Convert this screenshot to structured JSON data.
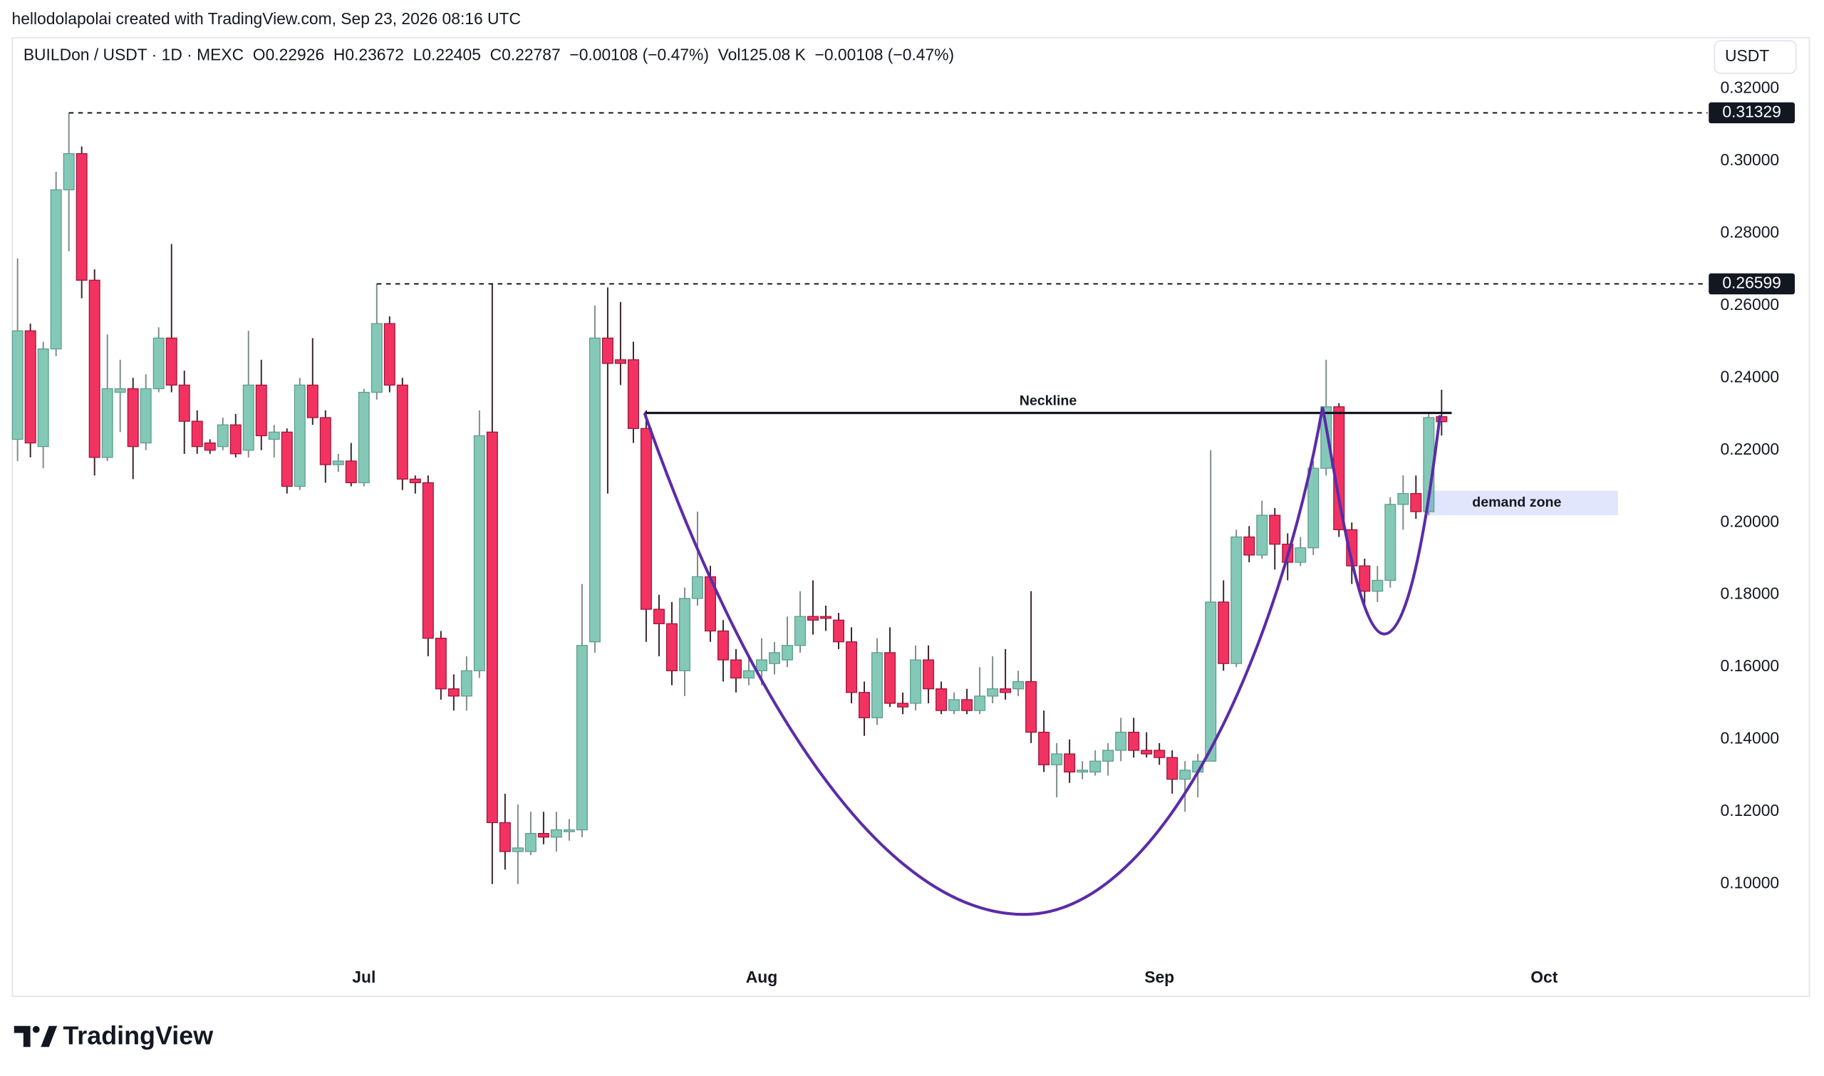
{
  "header": "hellodolapolai created with TradingView.com, Sep 23, 2026 08:16 UTC",
  "brand": "TradingView",
  "chart_data": {
    "type": "candlestick",
    "legend_text": "BUILDon / USDT · 1D · MEXC  O0.22926  H0.23672  L0.22405  C0.22787  −0.00108 (−0.47%)  Vol125.08 K  −0.00108 (−0.47%)",
    "currency": "USDT",
    "categories": [
      null,
      null,
      null,
      null,
      null,
      null,
      null,
      null,
      null,
      null,
      null,
      null,
      null,
      null,
      null,
      null,
      null,
      null,
      null,
      null,
      null,
      null,
      null,
      null,
      null,
      null,
      null,
      "Jul",
      null,
      null,
      null,
      null,
      null,
      null,
      null,
      null,
      null,
      null,
      null,
      null,
      null,
      null,
      null,
      null,
      null,
      null,
      null,
      null,
      null,
      null,
      null,
      null,
      null,
      null,
      null,
      null,
      null,
      null,
      "Aug",
      null,
      null,
      null,
      null,
      null,
      null,
      null,
      null,
      null,
      null,
      null,
      null,
      null,
      null,
      null,
      null,
      null,
      null,
      null,
      null,
      null,
      null,
      null,
      null,
      null,
      null,
      null,
      null,
      null,
      null,
      "Sep",
      null,
      null,
      null,
      null,
      null,
      null,
      null,
      null,
      null,
      null,
      null,
      null,
      null,
      null,
      null,
      null,
      null,
      null,
      null,
      null,
      null,
      null,
      null,
      null,
      null,
      null,
      null,
      null,
      null,
      "Oct",
      null,
      null,
      null,
      null,
      null,
      null,
      null,
      null,
      null,
      null,
      null,
      null
    ],
    "open": [
      0.223,
      0.253,
      0.221,
      0.248,
      0.292,
      0.302,
      0.267,
      0.218,
      0.236,
      0.237,
      0.222,
      0.237,
      0.251,
      0.238,
      0.228,
      0.222,
      0.221,
      0.227,
      0.22,
      0.238,
      0.223,
      0.225,
      0.21,
      0.238,
      0.229,
      0.216,
      0.217,
      0.211,
      0.236,
      0.255,
      0.238,
      0.212,
      0.211,
      0.168,
      0.154,
      0.152,
      0.159,
      0.225,
      0.117,
      0.109,
      0.109,
      0.114,
      0.113,
      0.1145,
      0.115,
      0.167,
      0.251,
      0.245,
      0.245,
      0.226,
      0.176,
      0.172,
      0.159,
      0.179,
      0.185,
      0.17,
      0.162,
      0.157,
      0.159,
      0.161,
      0.162,
      0.166,
      0.174,
      0.174,
      0.173,
      0.167,
      0.153,
      0.146,
      0.164,
      0.15,
      0.15,
      0.162,
      0.154,
      0.148,
      0.151,
      0.148,
      0.152,
      0.154,
      0.154,
      0.156,
      0.142,
      0.133,
      0.136,
      0.131,
      0.131,
      0.134,
      0.137,
      0.142,
      0.137,
      0.137,
      0.135,
      0.129,
      0.131,
      0.134,
      0.178,
      0.161,
      0.196,
      0.191,
      0.202,
      0.194,
      0.189,
      0.193,
      0.215,
      0.232,
      0.198,
      0.188,
      0.181,
      0.184,
      0.205,
      0.208,
      0.203,
      0.22926,
      null,
      null,
      null,
      null,
      null,
      null,
      null,
      null,
      null,
      null,
      null,
      null,
      null,
      null,
      null,
      null,
      null,
      null,
      null,
      null
    ],
    "high": [
      0.273,
      0.255,
      0.25,
      0.297,
      0.31329,
      0.304,
      0.27,
      0.252,
      0.245,
      0.24,
      0.241,
      0.254,
      0.277,
      0.242,
      0.231,
      0.223,
      0.229,
      0.23,
      0.253,
      0.245,
      0.227,
      0.226,
      0.24,
      0.251,
      0.231,
      0.219,
      0.222,
      0.237,
      0.26599,
      0.257,
      0.24,
      0.213,
      0.213,
      0.17,
      0.158,
      0.163,
      0.231,
      0.266,
      0.125,
      0.122,
      0.12,
      0.12,
      0.12,
      0.118,
      0.183,
      0.26,
      0.265,
      0.261,
      0.25,
      0.231,
      0.18,
      0.178,
      0.182,
      0.203,
      0.188,
      0.173,
      0.165,
      0.163,
      0.168,
      0.167,
      0.174,
      0.181,
      0.184,
      0.177,
      0.175,
      0.171,
      0.156,
      0.168,
      0.171,
      0.153,
      0.166,
      0.166,
      0.156,
      0.153,
      0.154,
      0.16,
      0.163,
      0.165,
      0.159,
      0.181,
      0.148,
      0.139,
      0.14,
      0.134,
      0.137,
      0.139,
      0.146,
      0.146,
      0.142,
      0.139,
      0.137,
      0.134,
      0.136,
      0.22,
      0.184,
      0.198,
      0.199,
      0.206,
      0.204,
      0.197,
      0.196,
      0.217,
      0.245,
      0.233,
      0.2,
      0.19,
      0.188,
      0.207,
      0.213,
      0.213,
      0.23,
      0.23672,
      null,
      null,
      null,
      null,
      null,
      null,
      null,
      null,
      null,
      null,
      null,
      null,
      null,
      null,
      null,
      null,
      null,
      null,
      null,
      null
    ],
    "low": [
      0.217,
      0.218,
      0.215,
      0.246,
      0.275,
      0.262,
      0.213,
      0.217,
      0.225,
      0.212,
      0.22,
      0.236,
      0.236,
      0.219,
      0.219,
      0.219,
      0.22,
      0.218,
      0.218,
      0.22,
      0.218,
      0.208,
      0.209,
      0.227,
      0.211,
      0.214,
      0.21,
      0.21,
      0.234,
      0.236,
      0.209,
      0.208,
      0.163,
      0.151,
      0.148,
      0.148,
      0.157,
      0.1,
      0.104,
      0.1,
      0.108,
      0.111,
      0.109,
      0.112,
      0.113,
      0.164,
      0.208,
      0.238,
      0.222,
      0.167,
      0.163,
      0.155,
      0.152,
      0.177,
      0.167,
      0.156,
      0.153,
      0.155,
      0.155,
      0.158,
      0.16,
      0.164,
      0.169,
      0.17,
      0.165,
      0.15,
      0.141,
      0.144,
      0.149,
      0.147,
      0.148,
      0.15,
      0.147,
      0.147,
      0.147,
      0.147,
      0.15,
      0.151,
      0.152,
      0.139,
      0.131,
      0.124,
      0.128,
      0.129,
      0.13,
      0.13,
      0.134,
      0.135,
      0.135,
      0.133,
      0.125,
      0.12,
      0.124,
      0.134,
      0.159,
      0.16,
      0.189,
      0.19,
      0.187,
      0.184,
      0.188,
      0.191,
      0.213,
      0.196,
      0.183,
      0.177,
      0.178,
      0.182,
      0.198,
      0.201,
      0.202,
      0.22405,
      null,
      null,
      null,
      null,
      null,
      null,
      null,
      null,
      null,
      null,
      null,
      null,
      null,
      null,
      null,
      null,
      null,
      null,
      null,
      null
    ],
    "close": [
      0.253,
      0.222,
      0.248,
      0.292,
      0.302,
      0.267,
      0.218,
      0.237,
      0.237,
      0.221,
      0.237,
      0.251,
      0.238,
      0.228,
      0.221,
      0.22,
      0.227,
      0.219,
      0.238,
      0.224,
      0.225,
      0.21,
      0.238,
      0.229,
      0.216,
      0.217,
      0.211,
      0.236,
      0.255,
      0.238,
      0.212,
      0.211,
      0.168,
      0.154,
      0.152,
      0.159,
      0.224,
      0.117,
      0.109,
      0.11,
      0.114,
      0.113,
      0.115,
      0.115,
      0.166,
      0.251,
      0.244,
      0.244,
      0.226,
      0.176,
      0.172,
      0.159,
      0.179,
      0.185,
      0.17,
      0.162,
      0.157,
      0.159,
      0.162,
      0.164,
      0.166,
      0.174,
      0.173,
      0.1735,
      0.167,
      0.153,
      0.146,
      0.164,
      0.15,
      0.149,
      0.162,
      0.154,
      0.148,
      0.151,
      0.148,
      0.152,
      0.154,
      0.153,
      0.156,
      0.142,
      0.133,
      0.136,
      0.131,
      0.1315,
      0.134,
      0.137,
      0.142,
      0.137,
      0.136,
      0.135,
      0.129,
      0.1315,
      0.134,
      0.178,
      0.161,
      0.196,
      0.191,
      0.202,
      0.194,
      0.189,
      0.193,
      0.215,
      0.232,
      0.198,
      0.188,
      0.181,
      0.184,
      0.205,
      0.208,
      0.203,
      0.229,
      0.22787,
      null,
      null,
      null,
      null,
      null,
      null,
      null,
      null,
      null,
      null,
      null,
      null,
      null,
      null,
      null,
      null,
      null,
      null,
      null,
      null
    ],
    "up_color": "#84c9b7",
    "down_color": "#f23362",
    "ylim": [
      0.0791,
      0.3342
    ],
    "yticks": [
      {
        "value": 0.32,
        "label": "0.32000"
      },
      {
        "value": 0.3,
        "label": "0.30000"
      },
      {
        "value": 0.28,
        "label": "0.28000"
      },
      {
        "value": 0.26,
        "label": "0.26000"
      },
      {
        "value": 0.24,
        "label": "0.24000"
      },
      {
        "value": 0.22,
        "label": "0.22000"
      },
      {
        "value": 0.2,
        "label": "0.20000"
      },
      {
        "value": 0.18,
        "label": "0.18000"
      },
      {
        "value": 0.16,
        "label": "0.16000"
      },
      {
        "value": 0.14,
        "label": "0.14000"
      },
      {
        "value": 0.12,
        "label": "0.12000"
      },
      {
        "value": 0.1,
        "label": "0.10000"
      }
    ],
    "grid": false,
    "levels": [
      0.31329,
      0.26599
    ],
    "neckline": {
      "label": "Neckline",
      "value": 0.2303
    },
    "zone": {
      "label": "demand zone",
      "range": [
        0.202,
        0.2088
      ]
    }
  }
}
